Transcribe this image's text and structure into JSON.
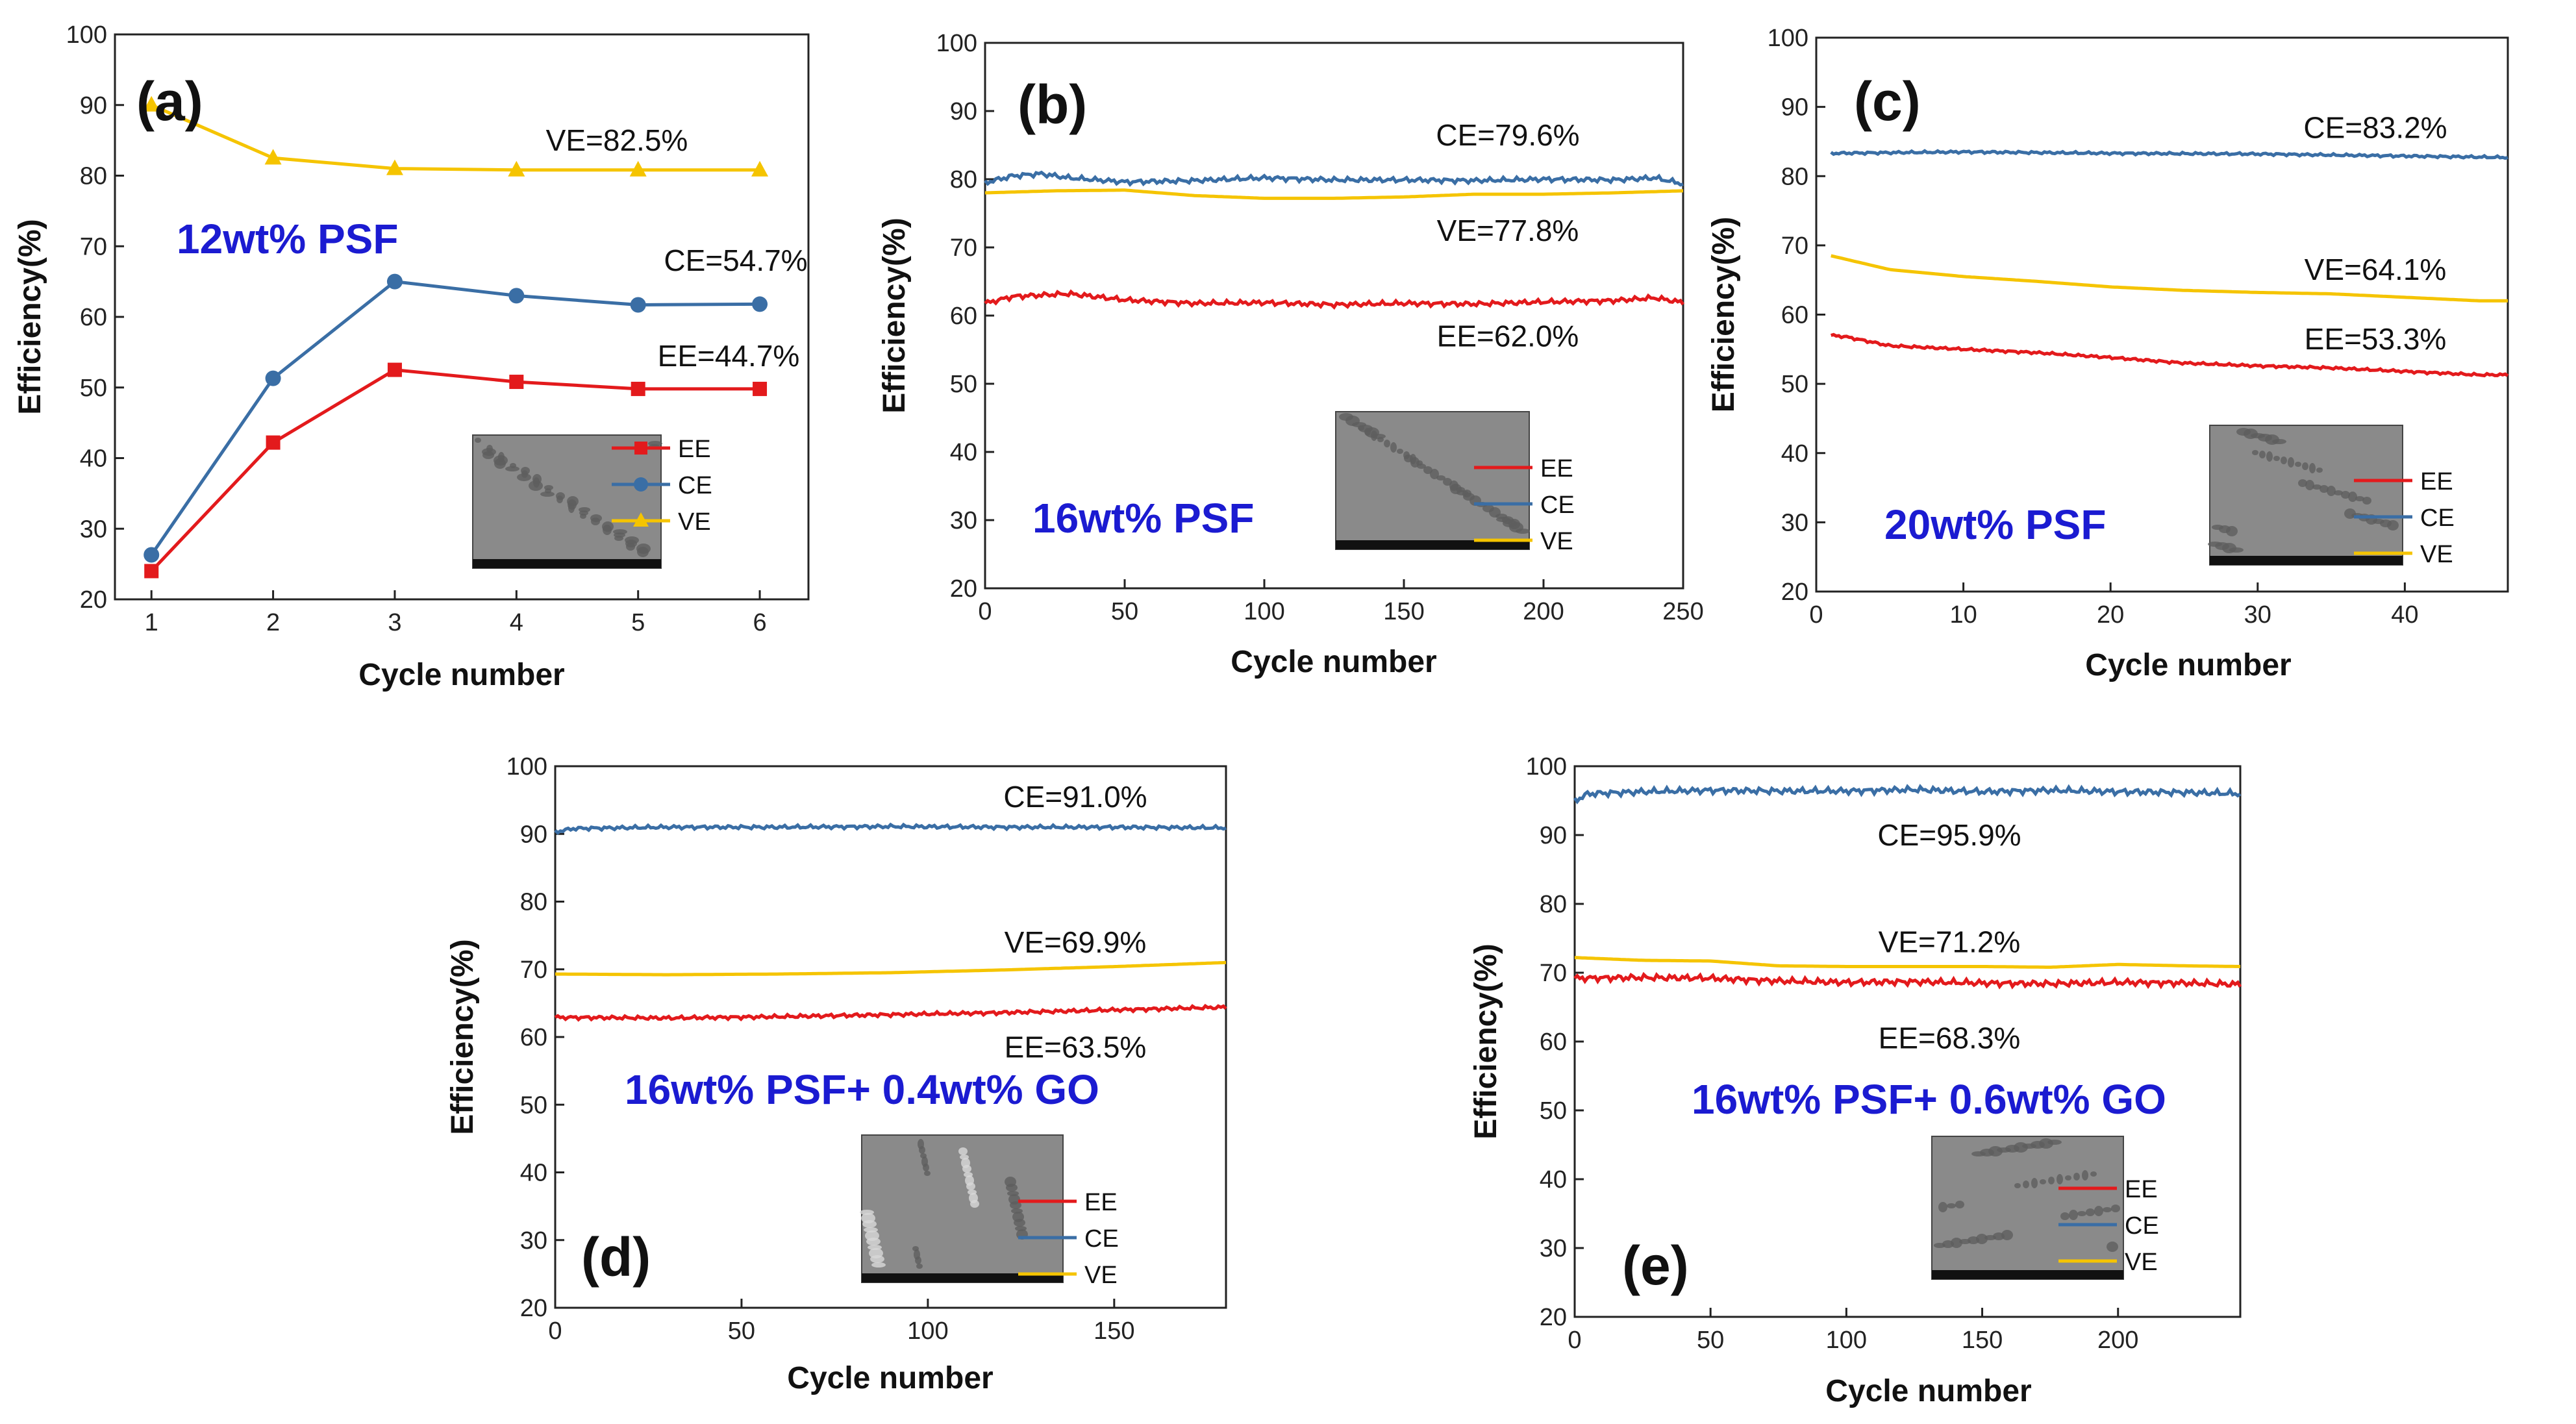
{
  "colors": {
    "EE": "#e31a1c",
    "CE": "#3a6ea5",
    "VE": "#f5c400",
    "title": "#1b1bd1"
  },
  "chart_data": [
    {
      "panel": "(a)",
      "type": "line",
      "title": "12wt% PSF",
      "xlabel": "Cycle number",
      "ylabel": "Efficiency(%)",
      "xlim": [
        0.7,
        6.4
      ],
      "ylim": [
        20,
        100
      ],
      "xticks": [
        1,
        2,
        3,
        4,
        5,
        6
      ],
      "yticks": [
        20,
        30,
        40,
        50,
        60,
        70,
        80,
        90,
        100
      ],
      "markers": true,
      "series": [
        {
          "name": "EE",
          "x": [
            1,
            2,
            3,
            4,
            5,
            6
          ],
          "values": [
            24,
            42.2,
            52.5,
            50.8,
            49.8,
            49.8
          ]
        },
        {
          "name": "CE",
          "x": [
            1,
            2,
            3,
            4,
            5,
            6
          ],
          "values": [
            26.3,
            51.3,
            65,
            63,
            61.7,
            61.8
          ]
        },
        {
          "name": "VE",
          "x": [
            1,
            2,
            3,
            4,
            5,
            6
          ],
          "values": [
            90,
            82.5,
            81,
            80.8,
            80.8,
            80.8
          ]
        }
      ],
      "annotations": [
        {
          "text": "VE=82.5%",
          "x": 5.1,
          "y": 85
        },
        {
          "text": "CE=54.7%",
          "x": 5.1,
          "y": 68
        },
        {
          "text": "EE=44.7%",
          "x": 5.1,
          "y": 54.5
        }
      ],
      "legend": [
        "EE",
        "CE",
        "VE"
      ]
    },
    {
      "panel": "(b)",
      "type": "line",
      "title": "16wt% PSF",
      "xlabel": "Cycle number",
      "ylabel": "Efficiency(%)",
      "xlim": [
        0,
        250
      ],
      "ylim": [
        20,
        100
      ],
      "xticks": [
        0,
        50,
        100,
        150,
        200,
        250
      ],
      "yticks": [
        20,
        30,
        40,
        50,
        60,
        70,
        80,
        90,
        100
      ],
      "markers": false,
      "series": [
        {
          "name": "EE",
          "x": [
            0,
            10,
            20,
            30,
            50,
            75,
            100,
            125,
            150,
            175,
            200,
            225,
            240,
            250
          ],
          "values": [
            61.8,
            62.8,
            63,
            63.2,
            62.3,
            61.8,
            61.9,
            61.6,
            61.8,
            61.7,
            62,
            62.2,
            62.6,
            61.9
          ]
        },
        {
          "name": "CE",
          "x": [
            0,
            10,
            20,
            30,
            50,
            75,
            100,
            125,
            150,
            175,
            200,
            225,
            240,
            250
          ],
          "values": [
            79.5,
            80.5,
            80.8,
            80.2,
            79.6,
            79.8,
            80.2,
            79.9,
            79.9,
            79.8,
            80,
            79.9,
            80.2,
            79.3
          ]
        },
        {
          "name": "VE",
          "x": [
            0,
            25,
            50,
            75,
            100,
            125,
            150,
            175,
            200,
            225,
            250
          ],
          "values": [
            78,
            78.3,
            78.4,
            77.6,
            77.2,
            77.2,
            77.4,
            77.8,
            77.8,
            78,
            78.3
          ]
        }
      ],
      "annotations": [
        {
          "text": "CE=79.6%",
          "x": 200,
          "y": 86.5
        },
        {
          "text": "VE=77.8%",
          "x": 200,
          "y": 72.5
        },
        {
          "text": "EE=62.0%",
          "x": 200,
          "y": 57
        }
      ],
      "legend": [
        "EE",
        "CE",
        "VE"
      ]
    },
    {
      "panel": "(c)",
      "type": "line",
      "title": "20wt% PSF",
      "xlabel": "Cycle number",
      "ylabel": "Efficiency(%)",
      "xlim": [
        0,
        47
      ],
      "ylim": [
        20,
        100
      ],
      "xticks": [
        0,
        10,
        20,
        30,
        40
      ],
      "yticks": [
        20,
        30,
        40,
        50,
        60,
        70,
        80,
        90,
        100
      ],
      "markers": false,
      "series": [
        {
          "name": "EE",
          "x": [
            1,
            2,
            5,
            10,
            15,
            20,
            25,
            30,
            35,
            40,
            45,
            47
          ],
          "values": [
            57,
            56.8,
            55.5,
            55,
            54.5,
            53.8,
            53,
            52.6,
            52.3,
            51.8,
            51.3,
            51.3
          ]
        },
        {
          "name": "CE",
          "x": [
            1,
            10,
            20,
            30,
            40,
            47
          ],
          "values": [
            83.3,
            83.5,
            83.3,
            83.2,
            82.9,
            82.7
          ]
        },
        {
          "name": "VE",
          "x": [
            1,
            2,
            5,
            10,
            15,
            20,
            25,
            30,
            35,
            40,
            45,
            47
          ],
          "values": [
            68.5,
            68,
            66.5,
            65.5,
            64.8,
            64,
            63.5,
            63.2,
            63,
            62.5,
            62,
            62
          ]
        }
      ],
      "annotations": [
        {
          "text": "CE=83.2%",
          "x": 38,
          "y": 87
        },
        {
          "text": "VE=64.1%",
          "x": 38,
          "y": 66.5
        },
        {
          "text": "EE=53.3%",
          "x": 38,
          "y": 56.5
        }
      ],
      "legend": [
        "EE",
        "CE",
        "VE"
      ]
    },
    {
      "panel": "(d)",
      "type": "line",
      "title": "16wt% PSF+ 0.4wt% GO",
      "xlabel": "Cycle number",
      "ylabel": "Efficiency(%)",
      "xlim": [
        0,
        180
      ],
      "ylim": [
        20,
        100
      ],
      "xticks": [
        0,
        50,
        100,
        150
      ],
      "yticks": [
        20,
        30,
        40,
        50,
        60,
        70,
        80,
        90,
        100
      ],
      "markers": false,
      "series": [
        {
          "name": "EE",
          "x": [
            0,
            30,
            60,
            90,
            120,
            150,
            180
          ],
          "values": [
            62.9,
            62.8,
            63,
            63.3,
            63.6,
            64,
            64.4
          ]
        },
        {
          "name": "CE",
          "x": [
            0,
            5,
            30,
            60,
            90,
            120,
            150,
            180
          ],
          "values": [
            90.3,
            90.8,
            91,
            91,
            91.1,
            91,
            91,
            90.9
          ]
        },
        {
          "name": "VE",
          "x": [
            0,
            30,
            60,
            90,
            120,
            150,
            180
          ],
          "values": [
            69.3,
            69.2,
            69.3,
            69.5,
            69.9,
            70.4,
            71
          ]
        }
      ],
      "annotations": [
        {
          "text": "CE=91.0%",
          "x": 140,
          "y": 95.5
        },
        {
          "text": "VE=69.9%",
          "x": 140,
          "y": 74
        },
        {
          "text": "EE=63.5%",
          "x": 140,
          "y": 58.5
        }
      ],
      "legend": [
        "EE",
        "CE",
        "VE"
      ]
    },
    {
      "panel": "(e)",
      "type": "line",
      "title": "16wt% PSF+ 0.6wt% GO",
      "xlabel": "Cycle number",
      "ylabel": "Efficiency(%)",
      "xlim": [
        0,
        245
      ],
      "ylim": [
        20,
        100
      ],
      "xticks": [
        0,
        50,
        100,
        150,
        200
      ],
      "yticks": [
        20,
        30,
        40,
        50,
        60,
        70,
        80,
        90,
        100
      ],
      "markers": false,
      "series": [
        {
          "name": "EE",
          "x": [
            0,
            25,
            50,
            75,
            100,
            125,
            150,
            175,
            200,
            225,
            245
          ],
          "values": [
            69.2,
            69.3,
            69.2,
            68.8,
            68.6,
            68.7,
            68.5,
            68.4,
            68.6,
            68.5,
            68.3
          ]
        },
        {
          "name": "CE",
          "x": [
            0,
            5,
            25,
            50,
            75,
            100,
            125,
            150,
            175,
            200,
            225,
            245
          ],
          "values": [
            95,
            96,
            96.3,
            96.5,
            96.4,
            96.4,
            96.6,
            96.3,
            96.5,
            96.3,
            96.2,
            96
          ]
        },
        {
          "name": "VE",
          "x": [
            0,
            25,
            50,
            75,
            100,
            125,
            150,
            175,
            200,
            225,
            245
          ],
          "values": [
            72.2,
            71.8,
            71.7,
            71,
            70.9,
            70.9,
            70.9,
            70.8,
            71.2,
            71,
            70.9
          ]
        }
      ],
      "annotations": [
        {
          "text": "CE=95.9%",
          "x": 133,
          "y": 90
        },
        {
          "text": "VE=71.2%",
          "x": 133,
          "y": 74.5
        },
        {
          "text": "EE=68.3%",
          "x": 133,
          "y": 60.5
        }
      ],
      "legend": [
        "EE",
        "CE",
        "VE"
      ]
    }
  ]
}
